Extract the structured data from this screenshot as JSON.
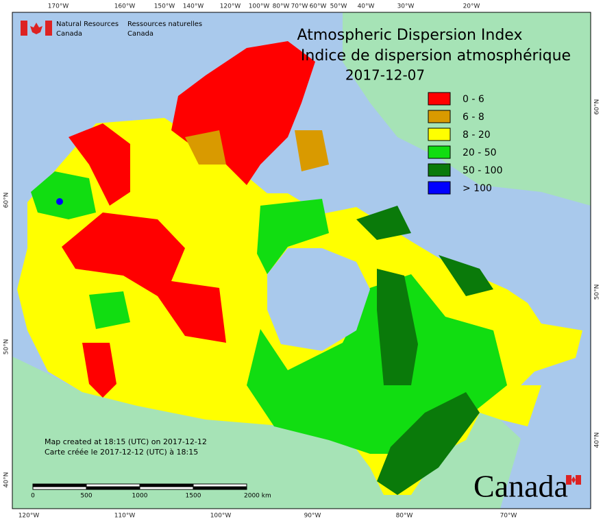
{
  "header": {
    "agency_en": [
      "Natural Resources",
      "Canada"
    ],
    "agency_fr": [
      "Ressources naturelles",
      "Canada"
    ]
  },
  "title": [
    "Atmospheric Dispersion Index",
    "Indice de dispersion atmosphérique",
    "2017-12-07"
  ],
  "legend": [
    {
      "label": "0 - 6",
      "color": "#ff0000"
    },
    {
      "label": "6 - 8",
      "color": "#d99a00"
    },
    {
      "label": "8 - 20",
      "color": "#ffff00"
    },
    {
      "label": "20 - 50",
      "color": "#11dd11"
    },
    {
      "label": "50 - 100",
      "color": "#0a7a0a"
    },
    {
      "label": "> 100",
      "color": "#0000ff"
    }
  ],
  "axis_labels": {
    "top": [
      "170°W",
      "160°W",
      "150°W",
      "140°W",
      "120°W",
      "100°W",
      "80°W",
      "70°W",
      "60°W",
      "50°W",
      "40°W",
      "30°W",
      "20°W"
    ],
    "bottom": [
      "120°W",
      "110°W",
      "100°W",
      "90°W",
      "80°W",
      "70°W"
    ],
    "left": [
      "60°N",
      "50°N",
      "40°N"
    ],
    "right": [
      "60°N",
      "50°N",
      "40°N"
    ]
  },
  "notes": [
    "Map created at 18:15 (UTC) on 2017-12-12",
    "Carte créée le 2017-12-12 (UTC) à 18:15"
  ],
  "scale_bar": [
    "0",
    "500",
    "1000",
    "1500",
    "2000 km"
  ],
  "wordmark": "Canada"
}
